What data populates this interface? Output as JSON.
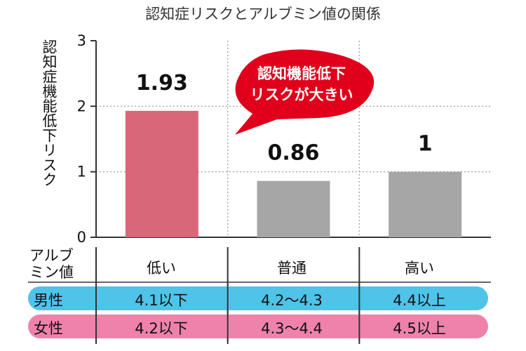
{
  "chart_data": {
    "type": "bar",
    "title": "認知症リスクとアルブミン値の関係",
    "ylabel": "認知症機能低下リスク",
    "ylim": [
      0,
      3
    ],
    "yticks": [
      "0",
      "1",
      "2",
      "3"
    ],
    "categories": [
      "低い",
      "普通",
      "高い"
    ],
    "values": [
      1.93,
      0.86,
      1
    ],
    "value_labels": [
      "1.93",
      "0.86",
      "1"
    ],
    "bar_colors": [
      "#d9677a",
      "#a6a6a6",
      "#a6a6a6"
    ],
    "grid": true,
    "annotation": {
      "line1": "認知機能低下",
      "line2": "リスクが大きい",
      "color": "#e0001b"
    }
  },
  "table": {
    "header_label_line1": "アルブ",
    "header_label_line2": "ミン値",
    "rows": [
      {
        "label": "男性",
        "values": [
          "4.1以下",
          "4.2〜4.3",
          "4.4以上"
        ],
        "color": "#4fc3e8"
      },
      {
        "label": "女性",
        "values": [
          "4.2以下",
          "4.3〜4.4",
          "4.5以上"
        ],
        "color": "#ee82ab"
      }
    ]
  }
}
